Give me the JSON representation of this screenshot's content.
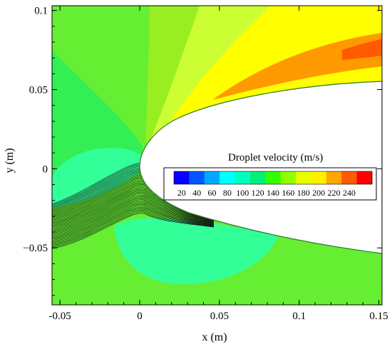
{
  "chart_data": {
    "type": "heatmap",
    "title": "",
    "xlabel": "x (m)",
    "ylabel": "y (m)",
    "xlim": [
      -0.055,
      0.152
    ],
    "ylim": [
      -0.086,
      0.103
    ],
    "xticks": [
      -0.05,
      0,
      0.05,
      0.1,
      0.15
    ],
    "xtick_labels": [
      "-0.05",
      "0",
      "0.05",
      "0.1",
      "0.15"
    ],
    "yticks": [
      -0.05,
      0,
      0.05,
      0.1
    ],
    "ytick_labels": [
      "−0.05",
      "0",
      "0.05",
      "0.1"
    ],
    "grid": false,
    "legend": {
      "title": "Droplet velocity (m/s)",
      "placement": "center-right",
      "levels": [
        20,
        40,
        60,
        80,
        100,
        120,
        140,
        160,
        180,
        200,
        220,
        240
      ],
      "labels": [
        "20",
        "40",
        "60",
        "80",
        "100",
        "120",
        "140",
        "160",
        "180",
        "200",
        "220",
        "240"
      ],
      "colors": [
        "#0a00ff",
        "#0057ff",
        "#00a9ff",
        "#00ffff",
        "#00ffbf",
        "#00f07a",
        "#33ff00",
        "#8fff00",
        "#e8ff00",
        "#ffef00",
        "#ffa600",
        "#ff5a00",
        "#ff0000"
      ]
    },
    "field_colors": {
      "ambient": "#66ee33",
      "front_region": "#33ee55",
      "stagnation": "#33ff99",
      "upper_band_1": "#99ee22",
      "upper_band_2": "#ccff33",
      "upper_band_3": "#ffff00",
      "upper_core": "#ff9900",
      "trajectories": "#111111",
      "body": "#ffffff"
    }
  }
}
